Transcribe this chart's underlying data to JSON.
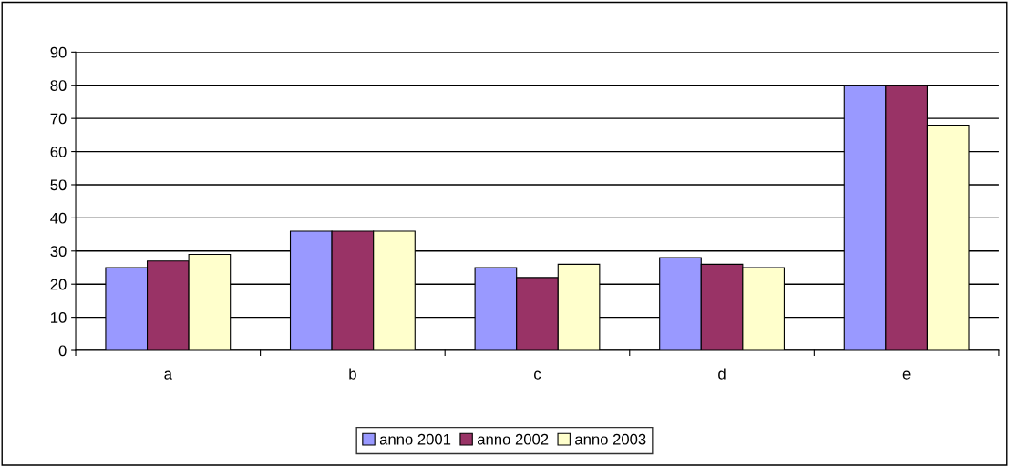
{
  "chart_data": {
    "type": "bar",
    "categories": [
      "a",
      "b",
      "c",
      "d",
      "e"
    ],
    "series": [
      {
        "name": "anno 2001",
        "color": "#9999ff",
        "values": [
          25,
          36,
          25,
          28,
          80
        ]
      },
      {
        "name": "anno 2002",
        "color": "#993366",
        "values": [
          27,
          36,
          22,
          26,
          80
        ]
      },
      {
        "name": "anno 2003",
        "color": "#ffffcc",
        "values": [
          29,
          36,
          26,
          25,
          68
        ]
      }
    ],
    "ylim": [
      0,
      90
    ],
    "yticks": [
      0,
      10,
      20,
      30,
      40,
      50,
      60,
      70,
      80,
      90
    ],
    "grid": "y",
    "legend": "bottom"
  }
}
